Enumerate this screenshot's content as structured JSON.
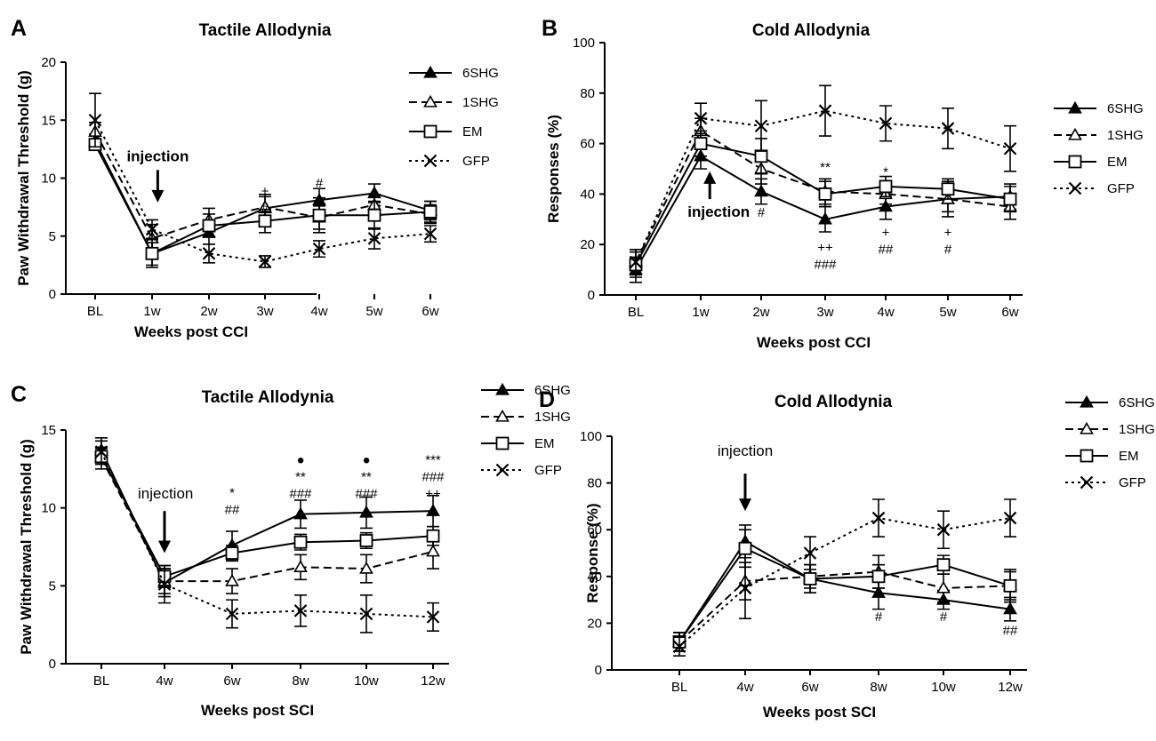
{
  "styles": {
    "6SHG": {
      "dash": "",
      "marker": "triangle-filled"
    },
    "1SHG": {
      "dash": "9,5",
      "marker": "triangle-open"
    },
    "EM": {
      "dash": "",
      "marker": "square-open"
    },
    "GFP": {
      "dash": "3,4",
      "marker": "x"
    }
  },
  "chart_data": [
    {
      "type": "line",
      "panel_letter": "A",
      "title": "Tactile Allodynia",
      "xlabel": "Weeks post CCI",
      "ylabel": "Paw Withdrawal Threshold (g)",
      "ylim": [
        0,
        20
      ],
      "yticks": [
        "0",
        "5",
        "10",
        "15",
        "20"
      ],
      "categories": [
        "BL",
        "1w",
        "2w",
        "3w",
        "4w",
        "5w",
        "6w"
      ],
      "legend": [
        "6SHG",
        "1SHG",
        "EM",
        "GFP"
      ],
      "series": [
        {
          "name": "6SHG",
          "values": [
            13.2,
            3.5,
            5.3,
            7.4,
            8.1,
            8.7,
            7.2
          ],
          "errors": [
            0.6,
            1.0,
            1.0,
            1.2,
            1.0,
            0.8,
            0.8
          ]
        },
        {
          "name": "1SHG",
          "values": [
            14.0,
            4.8,
            6.4,
            7.5,
            6.6,
            7.7,
            6.9
          ],
          "errors": [
            0.8,
            1.2,
            1.0,
            0.9,
            1.0,
            0.9,
            0.8
          ]
        },
        {
          "name": "EM",
          "values": [
            12.9,
            3.5,
            5.9,
            6.3,
            6.8,
            6.8,
            7.1
          ],
          "errors": [
            0.4,
            1.2,
            1.0,
            1.0,
            1.5,
            1.2,
            0.9
          ]
        },
        {
          "name": "GFP",
          "values": [
            15.0,
            5.6,
            3.5,
            2.8,
            3.9,
            4.8,
            5.2
          ],
          "errors": [
            2.3,
            0.8,
            0.8,
            0.5,
            0.7,
            0.9,
            0.7
          ]
        }
      ],
      "annotations": [
        {
          "index": 3,
          "value": 8.5,
          "lines": [
            "+",
            "#"
          ]
        },
        {
          "index": 4,
          "value": 9.2,
          "lines": [
            "#"
          ]
        }
      ],
      "injection": {
        "label": "injection",
        "index": 1.1,
        "from": 10.7,
        "to": 7.9
      }
    },
    {
      "type": "line",
      "panel_letter": "B",
      "title": "Cold Allodynia",
      "xlabel": "Weeks post CCI",
      "ylabel": "Responses (%)",
      "ylim": [
        0,
        100
      ],
      "yticks": [
        "0",
        "20",
        "40",
        "60",
        "80",
        "100"
      ],
      "categories": [
        "BL",
        "1w",
        "2w",
        "3w",
        "4w",
        "5w",
        "6w"
      ],
      "legend": [
        "6SHG",
        "1SHG",
        "EM",
        "GFP"
      ],
      "series": [
        {
          "name": "6SHG",
          "values": [
            10,
            55,
            41,
            30,
            35,
            38,
            39
          ],
          "errors": [
            5,
            5,
            5,
            5,
            5,
            7,
            5
          ]
        },
        {
          "name": "1SHG",
          "values": [
            13,
            65,
            50,
            41,
            40,
            38,
            35
          ],
          "errors": [
            5,
            5,
            6,
            5,
            4,
            5,
            5
          ]
        },
        {
          "name": "EM",
          "values": [
            12,
            60,
            55,
            40,
            43,
            42,
            38
          ],
          "errors": [
            5,
            5,
            7,
            5,
            4,
            4,
            5
          ]
        },
        {
          "name": "GFP",
          "values": [
            13,
            70,
            67,
            73,
            68,
            66,
            58
          ],
          "errors": [
            5,
            6,
            10,
            10,
            7,
            8,
            9
          ]
        }
      ],
      "annotations": [
        {
          "index": 2,
          "value": 31,
          "lines": [
            "#"
          ]
        },
        {
          "index": 3,
          "value": 49,
          "lines": [
            "**"
          ]
        },
        {
          "index": 3,
          "value": 17,
          "lines": [
            "++",
            "###"
          ]
        },
        {
          "index": 4,
          "value": 47,
          "lines": [
            "*"
          ]
        },
        {
          "index": 4,
          "value": 23,
          "lines": [
            "+",
            "##"
          ]
        },
        {
          "index": 5,
          "value": 23,
          "lines": [
            "+",
            "#"
          ]
        }
      ],
      "injection": {
        "label": "injection",
        "index": 1.15,
        "from": 38,
        "to": 49
      }
    },
    {
      "type": "line",
      "panel_letter": "C",
      "title": "Tactile Allodynia",
      "xlabel": "Weeks post SCI",
      "ylabel": "Paw Withdrawal Threshold (g)",
      "ylim": [
        0,
        15
      ],
      "yticks": [
        "0",
        "5",
        "10",
        "15"
      ],
      "categories": [
        "BL",
        "4w",
        "6w",
        "8w",
        "10w",
        "12w"
      ],
      "legend": [
        "6SHG",
        "1SHG",
        "EM",
        "GFP"
      ],
      "series": [
        {
          "name": "6SHG",
          "values": [
            13.7,
            5.2,
            7.6,
            9.6,
            9.7,
            9.8
          ],
          "errors": [
            0.8,
            0.9,
            0.9,
            0.9,
            1.0,
            1.0
          ]
        },
        {
          "name": "1SHG",
          "values": [
            13.2,
            5.3,
            5.3,
            6.2,
            6.1,
            7.2
          ],
          "errors": [
            0.7,
            0.8,
            0.8,
            0.8,
            0.9,
            1.1
          ]
        },
        {
          "name": "EM",
          "values": [
            13.3,
            5.6,
            7.1,
            7.8,
            7.9,
            8.2
          ],
          "errors": [
            0.5,
            0.7,
            0.5,
            0.5,
            0.5,
            0.6
          ]
        },
        {
          "name": "GFP",
          "values": [
            13.6,
            5.1,
            3.2,
            3.4,
            3.2,
            3.0
          ],
          "errors": [
            0.7,
            1.2,
            0.9,
            1.0,
            1.2,
            0.9
          ]
        }
      ],
      "annotations": [
        {
          "index": 2,
          "value": 10.7,
          "lines": [
            "*",
            "##"
          ]
        },
        {
          "index": 3,
          "value": 12.8,
          "lines": [
            "●",
            "**",
            "###"
          ]
        },
        {
          "index": 4,
          "value": 12.8,
          "lines": [
            "●",
            "**",
            "###"
          ]
        },
        {
          "index": 5,
          "value": 12.8,
          "lines": [
            "***",
            "###",
            "++"
          ]
        }
      ],
      "injection": {
        "label": "injection",
        "index": 1.0,
        "from": 9.8,
        "to": 7.1
      }
    },
    {
      "type": "line",
      "panel_letter": "D",
      "title": "Cold Allodynia",
      "xlabel": "Weeks post SCI",
      "ylabel": "Response (%)",
      "ylim": [
        0,
        100
      ],
      "yticks": [
        "0",
        "20",
        "40",
        "60",
        "80",
        "100"
      ],
      "categories": [
        "BL",
        "4w",
        "6w",
        "8w",
        "10w",
        "12w"
      ],
      "legend": [
        "6SHG",
        "1SHG",
        "EM",
        "GFP"
      ],
      "series": [
        {
          "name": "6SHG",
          "values": [
            12,
            55,
            39,
            33,
            30,
            26
          ],
          "errors": [
            4,
            7,
            6,
            7,
            4,
            5
          ]
        },
        {
          "name": "1SHG",
          "values": [
            12,
            38,
            40,
            42,
            35,
            36
          ],
          "errors": [
            4,
            8,
            5,
            7,
            6,
            6
          ]
        },
        {
          "name": "EM",
          "values": [
            12,
            52,
            39,
            40,
            45,
            36
          ],
          "errors": [
            4,
            8,
            6,
            5,
            4,
            7
          ]
        },
        {
          "name": "GFP",
          "values": [
            10,
            35,
            50,
            65,
            60,
            65
          ],
          "errors": [
            4,
            13,
            7,
            8,
            8,
            8
          ]
        }
      ],
      "annotations": [
        {
          "index": 3,
          "value": 21,
          "lines": [
            "#"
          ]
        },
        {
          "index": 4,
          "value": 21,
          "lines": [
            "#"
          ]
        },
        {
          "index": 5,
          "value": 15,
          "lines": [
            "##"
          ]
        }
      ],
      "injection": {
        "label": "injection",
        "index": 1.0,
        "from": 84,
        "to": 68
      }
    }
  ]
}
